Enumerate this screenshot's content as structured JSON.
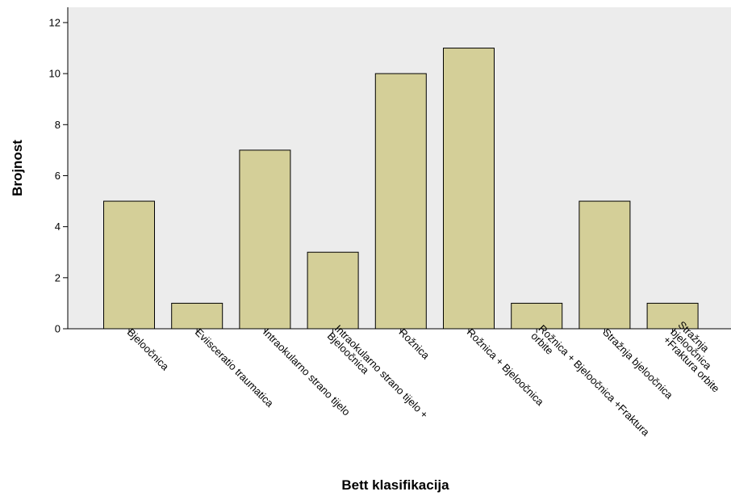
{
  "chart_data": {
    "type": "bar",
    "title": "",
    "xlabel": "Bett klasifikacija",
    "ylabel": "Brojnost",
    "ylim": [
      0,
      12.6
    ],
    "yticks": [
      0,
      2,
      4,
      6,
      8,
      10,
      12
    ],
    "grid": false,
    "categories": [
      "Bjeloočnica",
      "Eviisceratio traumatica",
      "Intraokularno strano tijelo",
      "Intraokularno strano tijelo + Bjeloočnica",
      "Rožnica",
      "Rožnica + Bjeloočnica",
      "Rožnica + Bjeloočnica +Fraktura orbite",
      "Stražnja bjeloočnica",
      "Stražnja bjeloočnica +Fraktura orbite"
    ],
    "category_label_lines": [
      [
        "Bjeloočnica"
      ],
      [
        "Eviisceratio traumatica"
      ],
      [
        "Intraokularno strano tijelo"
      ],
      [
        "Intraokularno strano tijelo +",
        "Bjeloočnica"
      ],
      [
        "Rožnica"
      ],
      [
        "Rožnica + Bjeloočnica"
      ],
      [
        "Rožnica + Bjeloočnica +Fraktura",
        "orbite"
      ],
      [
        "Stražnja bjeloočnica"
      ],
      [
        "Stražnja",
        "bjeloočnica",
        "+Fraktura orbite"
      ]
    ],
    "values": [
      5,
      1,
      7,
      3,
      10,
      11,
      1,
      5,
      1
    ],
    "colors": {
      "bar_fill": "#d4cf98",
      "bar_stroke": "#000000",
      "plot_background": "#ececec",
      "page_background": "#ffffff"
    }
  }
}
